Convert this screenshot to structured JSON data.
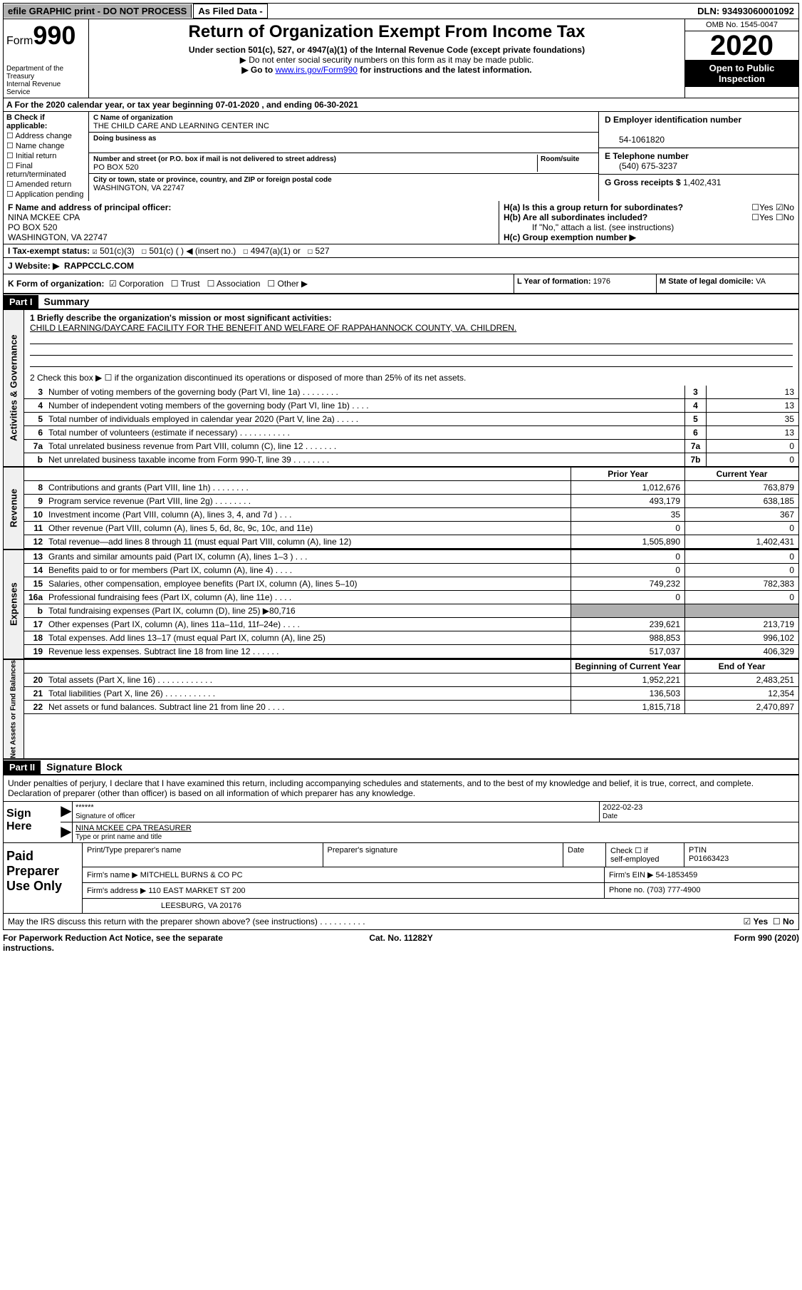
{
  "topbar": {
    "efile": "efile GRAPHIC print - DO NOT PROCESS",
    "asfiled": "As Filed Data -",
    "dln": "DLN: 93493060001092"
  },
  "form": {
    "prefix": "Form",
    "num": "990",
    "dept": "Department of the Treasury",
    "irs": "Internal Revenue Service"
  },
  "hdr": {
    "title": "Return of Organization Exempt From Income Tax",
    "sub": "Under section 501(c), 527, or 4947(a)(1) of the Internal Revenue Code (except private foundations)",
    "l1": "▶ Do not enter social security numbers on this form as it may be made public.",
    "l2a": "▶ Go to ",
    "l2link": "www.irs.gov/Form990",
    "l2b": " for instructions and the latest information.",
    "omb": "OMB No. 1545-0047",
    "year": "2020",
    "inspect": "Open to Public Inspection"
  },
  "rowA": "A   For the 2020 calendar year, or tax year beginning 07-01-2020   , and ending 06-30-2021",
  "B": {
    "h": "B Check if applicable:",
    "items": [
      "Address change",
      "Name change",
      "Initial return",
      "Final return/terminated",
      "Amended return",
      "Application pending"
    ]
  },
  "C": {
    "nameH": "C Name of organization",
    "name": "THE CHILD CARE AND LEARNING CENTER INC",
    "dbaH": "Doing business as",
    "addrH": "Number and street (or P.O. box if mail is not delivered to street address)",
    "room": "Room/suite",
    "addr": "PO BOX 520",
    "cityH": "City or town, state or province, country, and ZIP or foreign postal code",
    "city": "WASHINGTON, VA  22747"
  },
  "D": {
    "h": "D Employer identification number",
    "v": "54-1061820"
  },
  "E": {
    "h": "E Telephone number",
    "v": "(540) 675-3237"
  },
  "G": {
    "h": "G Gross receipts $",
    "v": "1,402,431"
  },
  "F": {
    "h": "F  Name and address of principal officer:",
    "n": "NINA MCKEE CPA",
    "a1": "PO BOX 520",
    "a2": "WASHINGTON, VA  22747"
  },
  "H": {
    "a": "H(a)  Is this a group return for subordinates?",
    "b": "H(b)  Are all subordinates included?",
    "note": "If \"No,\" attach a list. (see instructions)",
    "c": "H(c)  Group exemption number ▶",
    "y": "Yes",
    "n": "No"
  },
  "I": {
    "h": "I   Tax-exempt status:",
    "opts": [
      "501(c)(3)",
      "501(c) (  ) ◀ (insert no.)",
      "4947(a)(1) or",
      "527"
    ]
  },
  "J": {
    "h": "J   Website: ▶",
    "v": "RAPPCCLC.COM"
  },
  "K": {
    "h": "K Form of organization:",
    "opts": [
      "Corporation",
      "Trust",
      "Association",
      "Other ▶"
    ]
  },
  "L": {
    "h": "L Year of formation:",
    "v": "1976"
  },
  "M": {
    "h": "M State of legal domicile:",
    "v": "VA"
  },
  "part1": {
    "label": "Part I",
    "title": "Summary"
  },
  "gov": {
    "vlabel": "Activities & Governance",
    "q1": "1 Briefly describe the organization's mission or most significant activities:",
    "mission": "CHILD LEARNING/DAYCARE FACILITY FOR THE BENEFIT AND WELFARE OF RAPPAHANNOCK COUNTY, VA. CHILDREN.",
    "q2": "2  Check this box ▶ ☐ if the organization discontinued its operations or disposed of more than 25% of its net assets.",
    "rows": [
      {
        "n": "3",
        "t": "Number of voting members of the governing body (Part VI, line 1a)  .   .   .   .   .   .   .   .",
        "b": "3",
        "v": "13"
      },
      {
        "n": "4",
        "t": "Number of independent voting members of the governing body (Part VI, line 1b)  .   .   .   .",
        "b": "4",
        "v": "13"
      },
      {
        "n": "5",
        "t": "Total number of individuals employed in calendar year 2020 (Part V, line 2a)  .   .   .   .   .",
        "b": "5",
        "v": "35"
      },
      {
        "n": "6",
        "t": "Total number of volunteers (estimate if necessary)  .   .   .   .   .   .   .   .   .   .   .",
        "b": "6",
        "v": "13"
      },
      {
        "n": "7a",
        "t": "Total unrelated business revenue from Part VIII, column (C), line 12  .   .   .   .   .   .   .",
        "b": "7a",
        "v": "0"
      },
      {
        "n": "b",
        "t": "Net unrelated business taxable income from Form 990-T, line 39  .   .   .   .   .   .   .   .",
        "b": "7b",
        "v": "0"
      }
    ]
  },
  "rev": {
    "vlabel": "Revenue",
    "h1": "Prior Year",
    "h2": "Current Year",
    "rows": [
      {
        "n": "8",
        "t": "Contributions and grants (Part VIII, line 1h)  .   .   .   .   .   .   .   .",
        "v1": "1,012,676",
        "v2": "763,879"
      },
      {
        "n": "9",
        "t": "Program service revenue (Part VIII, line 2g)  .   .   .   .   .   .   .   .",
        "v1": "493,179",
        "v2": "638,185"
      },
      {
        "n": "10",
        "t": "Investment income (Part VIII, column (A), lines 3, 4, and 7d )  .   .   .",
        "v1": "35",
        "v2": "367"
      },
      {
        "n": "11",
        "t": "Other revenue (Part VIII, column (A), lines 5, 6d, 8c, 9c, 10c, and 11e)",
        "v1": "0",
        "v2": "0"
      },
      {
        "n": "12",
        "t": "Total revenue—add lines 8 through 11 (must equal Part VIII, column (A), line 12)",
        "v1": "1,505,890",
        "v2": "1,402,431"
      }
    ]
  },
  "exp": {
    "vlabel": "Expenses",
    "rows": [
      {
        "n": "13",
        "t": "Grants and similar amounts paid (Part IX, column (A), lines 1–3 )  .   .   .",
        "v1": "0",
        "v2": "0"
      },
      {
        "n": "14",
        "t": "Benefits paid to or for members (Part IX, column (A), line 4)  .   .   .   .",
        "v1": "0",
        "v2": "0"
      },
      {
        "n": "15",
        "t": "Salaries, other compensation, employee benefits (Part IX, column (A), lines 5–10)",
        "v1": "749,232",
        "v2": "782,383"
      },
      {
        "n": "16a",
        "t": "Professional fundraising fees (Part IX, column (A), line 11e)  .   .   .   .",
        "v1": "0",
        "v2": "0"
      },
      {
        "n": "b",
        "t": "Total fundraising expenses (Part IX, column (D), line 25) ▶80,716",
        "gray": true
      },
      {
        "n": "17",
        "t": "Other expenses (Part IX, column (A), lines 11a–11d, 11f–24e)  .   .   .   .",
        "v1": "239,621",
        "v2": "213,719"
      },
      {
        "n": "18",
        "t": "Total expenses. Add lines 13–17 (must equal Part IX, column (A), line 25)",
        "v1": "988,853",
        "v2": "996,102"
      },
      {
        "n": "19",
        "t": "Revenue less expenses. Subtract line 18 from line 12  .   .   .   .   .   .",
        "v1": "517,037",
        "v2": "406,329"
      }
    ]
  },
  "na": {
    "vlabel": "Net Assets or Fund Balances",
    "h1": "Beginning of Current Year",
    "h2": "End of Year",
    "rows": [
      {
        "n": "20",
        "t": "Total assets (Part X, line 16)  .   .   .   .   .   .   .   .   .   .   .   .",
        "v1": "1,952,221",
        "v2": "2,483,251"
      },
      {
        "n": "21",
        "t": "Total liabilities (Part X, line 26)  .   .   .   .   .   .   .   .   .   .   .",
        "v1": "136,503",
        "v2": "12,354"
      },
      {
        "n": "22",
        "t": "Net assets or fund balances. Subtract line 21 from line 20  .   .   .   .",
        "v1": "1,815,718",
        "v2": "2,470,897"
      }
    ]
  },
  "part2": {
    "label": "Part II",
    "title": "Signature Block"
  },
  "decl": "Under penalties of perjury, I declare that I have examined this return, including accompanying schedules and statements, and to the best of my knowledge and belief, it is true, correct, and complete. Declaration of preparer (other than officer) is based on all information of which preparer has any knowledge.",
  "sign": {
    "lab": "Sign Here",
    "stars": "******",
    "sigof": "Signature of officer",
    "date": "2022-02-23",
    "dateh": "Date",
    "name": "NINA MCKEE CPA  TREASURER",
    "nameh": "Type or print name and title"
  },
  "prep": {
    "lab": "Paid Preparer Use Only",
    "r1": {
      "c1": "Print/Type preparer's name",
      "c2": "Preparer's signature",
      "c3": "Date",
      "c4a": "Check ☐ if",
      "c4b": "self-employed",
      "c5a": "PTIN",
      "c5b": "P01663423"
    },
    "r2": {
      "a": "Firm's name      ▶ MITCHELL BURNS & CO PC",
      "b": "Firm's EIN ▶ 54-1853459"
    },
    "r3": {
      "a": "Firm's address ▶ 110 EAST MARKET ST 200",
      "b": "Phone no. (703) 777-4900"
    },
    "r4": "LEESBURG, VA  20176"
  },
  "discuss": {
    "t": "May the IRS discuss this return with the preparer shown above? (see instructions)  .   .   .   .   .   .   .   .   .   .",
    "y": "Yes",
    "n": "No"
  },
  "bottom": {
    "l": "For Paperwork Reduction Act Notice, see the separate instructions.",
    "c": "Cat. No. 11282Y",
    "r": "Form 990 (2020)"
  }
}
